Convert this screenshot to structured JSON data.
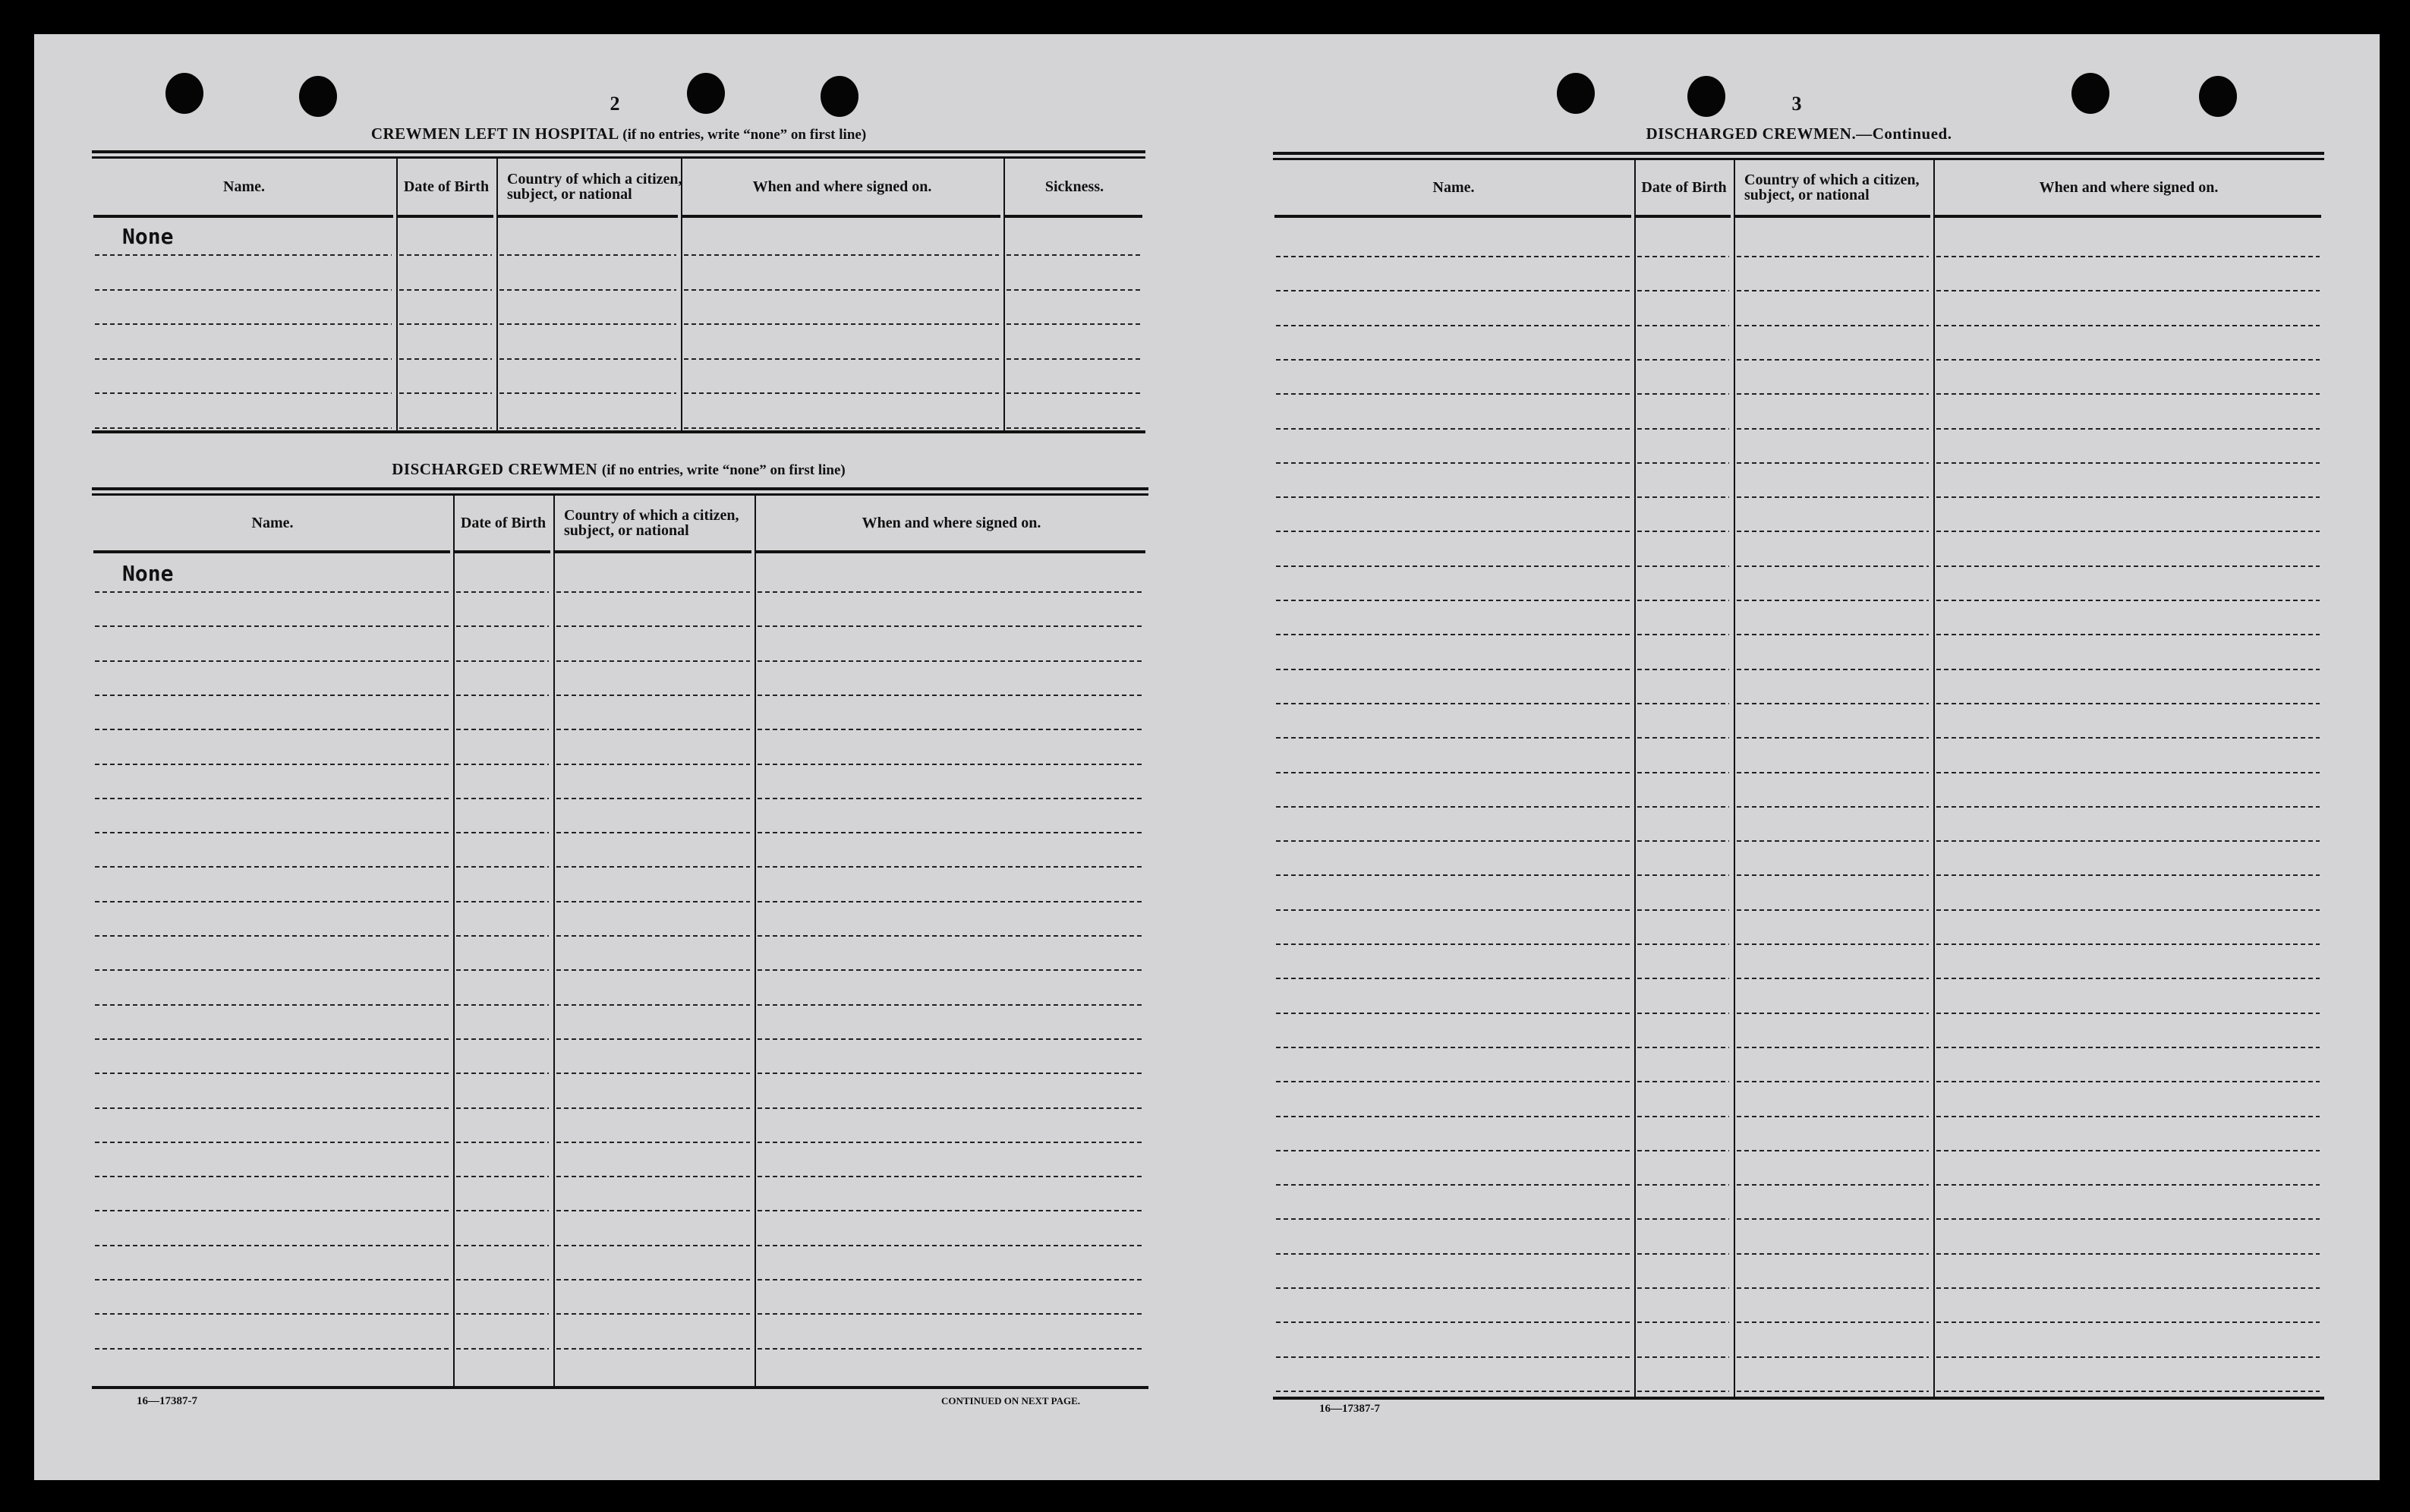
{
  "left_page": {
    "page_number": "2",
    "hospital": {
      "title": "CREWMEN LEFT IN HOSPITAL",
      "instruction": "(if no entries, write “none” on first line)",
      "headers": [
        "Name.",
        "Date of Birth",
        "Country of which a citizen, subject, or national",
        "When and where signed on.",
        "Sickness."
      ],
      "entry": "None"
    },
    "discharged": {
      "title": "DISCHARGED CREWMEN",
      "instruction": "(if no entries, write “none” on first line)",
      "headers": [
        "Name.",
        "Date of Birth",
        "Country of which a citizen, subject, or national",
        "When and where signed on."
      ],
      "entry": "None"
    },
    "form_number": "16—17387-7",
    "continued_note": "CONTINUED ON NEXT PAGE."
  },
  "right_page": {
    "page_number": "3",
    "discharged_continued": {
      "title": "DISCHARGED CREWMEN.—Continued.",
      "headers": [
        "Name.",
        "Date of Birth",
        "Country of which a citizen, subject, or national",
        "When and where signed on."
      ]
    },
    "form_number": "16—17387-7"
  }
}
